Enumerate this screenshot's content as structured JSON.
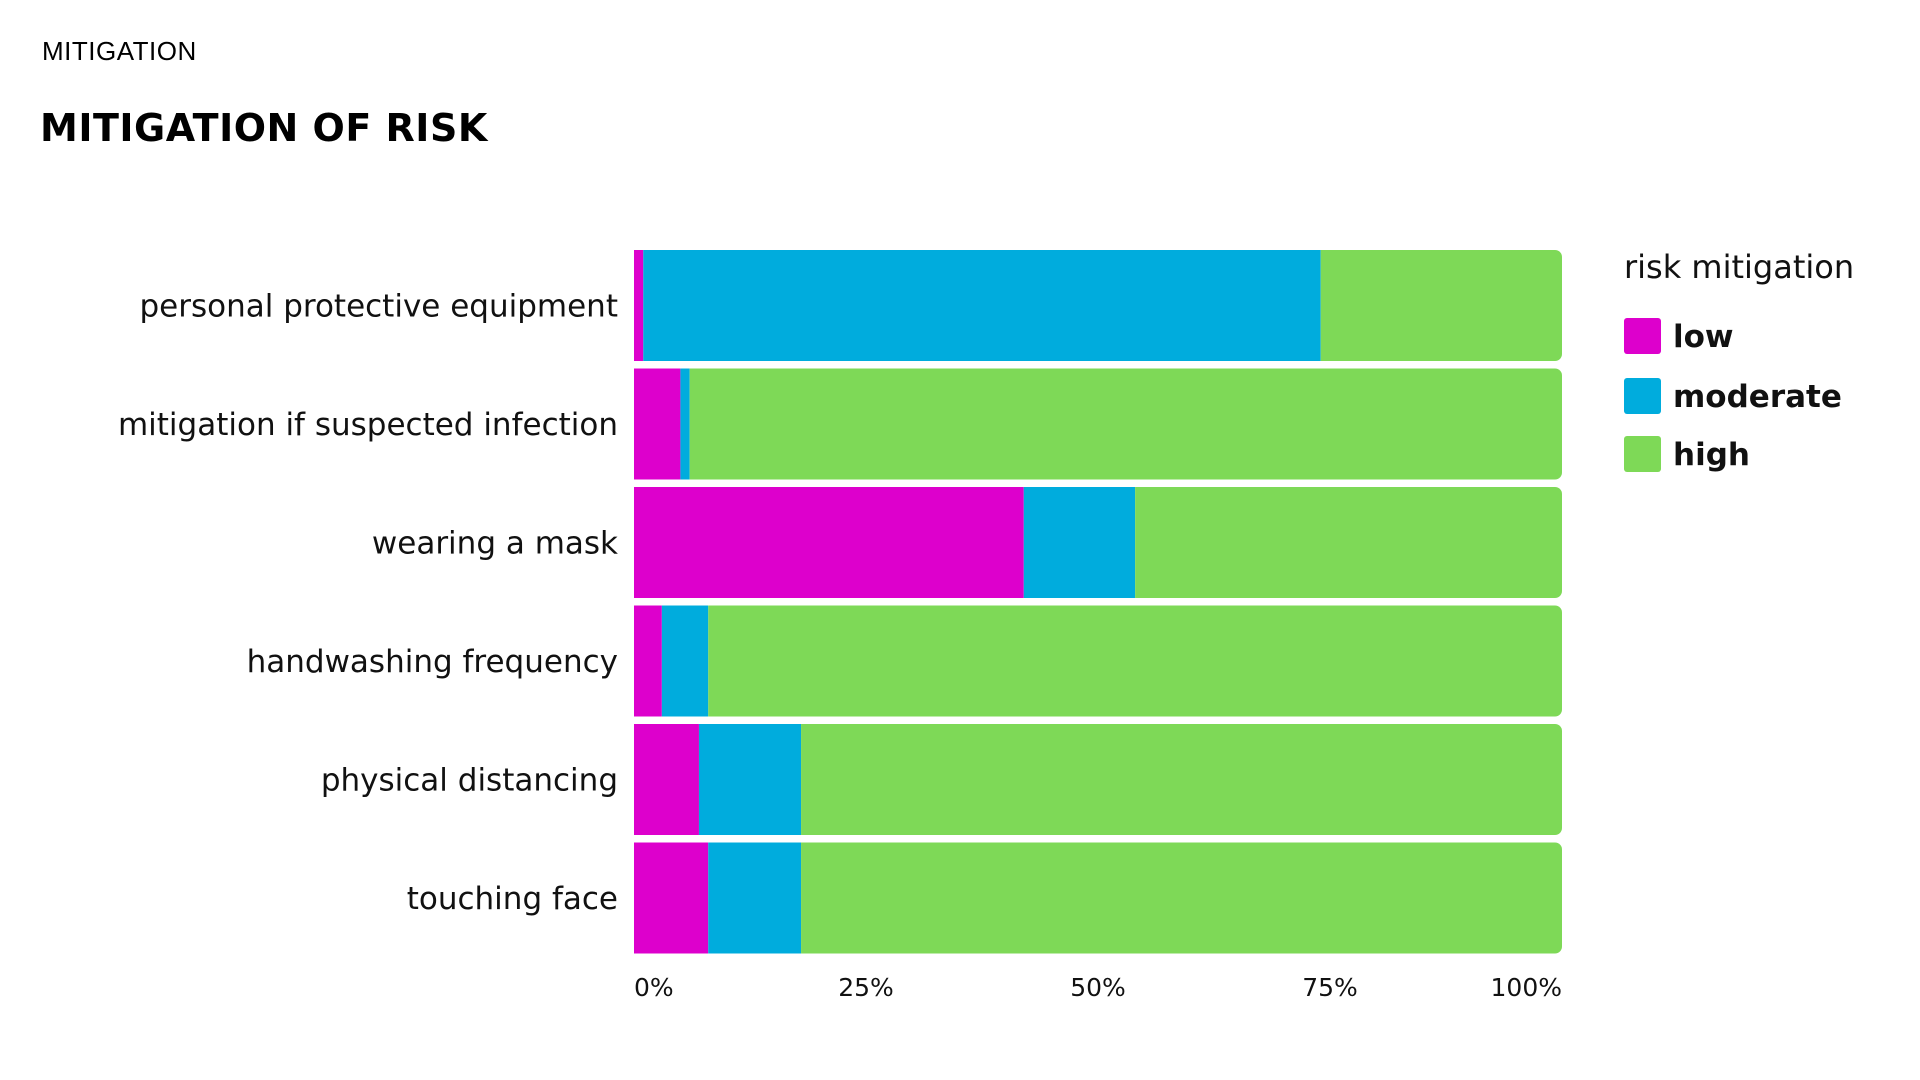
{
  "header": {
    "eyebrow": "MITIGATION",
    "title": "MITIGATION OF RISK"
  },
  "chart_data": {
    "type": "bar",
    "orientation": "horizontal",
    "stacked": "percent",
    "categories": [
      "personal protective equipment",
      "mitigation if suspected infection",
      "wearing a mask",
      "handwashing frequency",
      "physical distancing",
      "touching face"
    ],
    "series": [
      {
        "name": "low",
        "color": "#dd00cc",
        "values": [
          1,
          5,
          42,
          3,
          7,
          8
        ]
      },
      {
        "name": "moderate",
        "color": "#00acdd",
        "values": [
          73,
          1,
          12,
          5,
          11,
          10
        ]
      },
      {
        "name": "high",
        "color": "#7ed957",
        "values": [
          26,
          94,
          46,
          92,
          82,
          82
        ]
      }
    ],
    "x_ticks": [
      "0%",
      "25%",
      "50%",
      "75%",
      "100%"
    ],
    "xlim": [
      0,
      100
    ],
    "legend": {
      "title": "risk mitigation",
      "position": "right"
    },
    "grid": false,
    "title": "MITIGATION OF RISK",
    "xlabel": "",
    "ylabel": ""
  }
}
